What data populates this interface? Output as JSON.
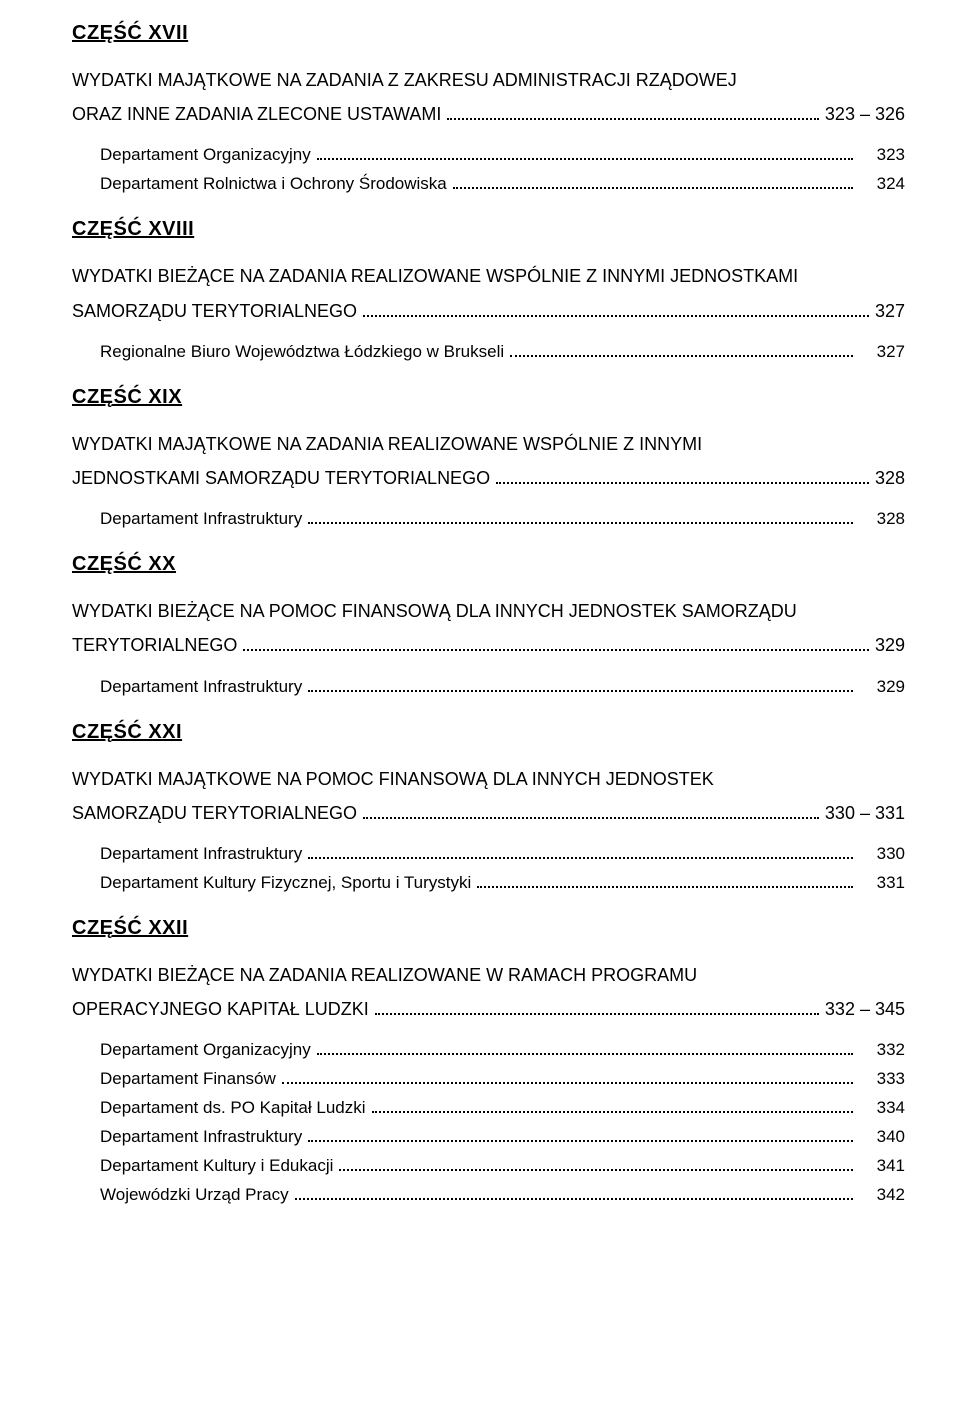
{
  "parts": [
    {
      "heading": "CZĘŚĆ XVII",
      "title_lines": [
        "WYDATKI  MAJĄTKOWE  NA  ZADANIA  Z  ZAKRESU  ADMINISTRACJI  RZĄDOWEJ"
      ],
      "title_last": "ORAZ INNE ZADANIA ZLECONE USTAWAMI",
      "title_page": "323 – 326",
      "entries": [
        {
          "label": "Departament Organizacyjny",
          "page": "323"
        },
        {
          "label": "Departament Rolnictwa i Ochrony Środowiska",
          "page": "324"
        }
      ]
    },
    {
      "heading": "CZĘŚĆ XVIII",
      "title_lines": [
        "WYDATKI BIEŻĄCE NA ZADANIA REALIZOWANE WSPÓLNIE Z INNYMI JEDNOSTKAMI"
      ],
      "title_last": "SAMORZĄDU TERYTORIALNEGO",
      "title_page": "327",
      "entries": [
        {
          "label": "Regionalne Biuro Województwa Łódzkiego w Brukseli",
          "page": "327"
        }
      ]
    },
    {
      "heading": "CZĘŚĆ XIX",
      "title_lines": [
        "WYDATKI   MAJĄTKOWE   NA   ZADANIA   REALIZOWANE   WSPÓLNIE   Z   INNYMI"
      ],
      "title_last": "JEDNOSTKAMI SAMORZĄDU TERYTORIALNEGO",
      "title_page": "328",
      "entries": [
        {
          "label": "Departament Infrastruktury",
          "page": "328"
        }
      ]
    },
    {
      "heading": "CZĘŚĆ XX",
      "title_lines": [
        "WYDATKI BIEŻĄCE NA POMOC FINANSOWĄ DLA INNYCH JEDNOSTEK SAMORZĄDU"
      ],
      "title_last": "TERYTORIALNEGO",
      "title_page": "329",
      "entries": [
        {
          "label": "Departament Infrastruktury",
          "page": "329"
        }
      ]
    },
    {
      "heading": "CZĘŚĆ XXI",
      "title_lines": [
        "WYDATKI   MAJĄTKOWE   NA   POMOC   FINANSOWĄ   DLA   INNYCH   JEDNOSTEK"
      ],
      "title_last": "SAMORZĄDU TERYTORIALNEGO",
      "title_page": "330 – 331",
      "entries": [
        {
          "label": "Departament Infrastruktury",
          "page": "330"
        },
        {
          "label": "Departament Kultury Fizycznej, Sportu i Turystyki",
          "page": "331"
        }
      ]
    },
    {
      "heading": "CZĘŚĆ XXII",
      "title_lines": [
        "WYDATKI   BIEŻĄCE   NA   ZADANIA   REALIZOWANE   W   RAMACH   PROGRAMU"
      ],
      "title_last": "OPERACYJNEGO KAPITAŁ LUDZKI",
      "title_page": "332 – 345",
      "entries": [
        {
          "label": "Departament Organizacyjny",
          "page": "332"
        },
        {
          "label": "Departament Finansów",
          "page": "333"
        },
        {
          "label": "Departament ds. PO Kapitał Ludzki",
          "page": "334"
        },
        {
          "label": "Departament Infrastruktury",
          "page": "340"
        },
        {
          "label": "Departament Kultury i Edukacji",
          "page": "341"
        },
        {
          "label": "Wojewódzki Urząd Pracy",
          "page": "342"
        }
      ]
    }
  ]
}
